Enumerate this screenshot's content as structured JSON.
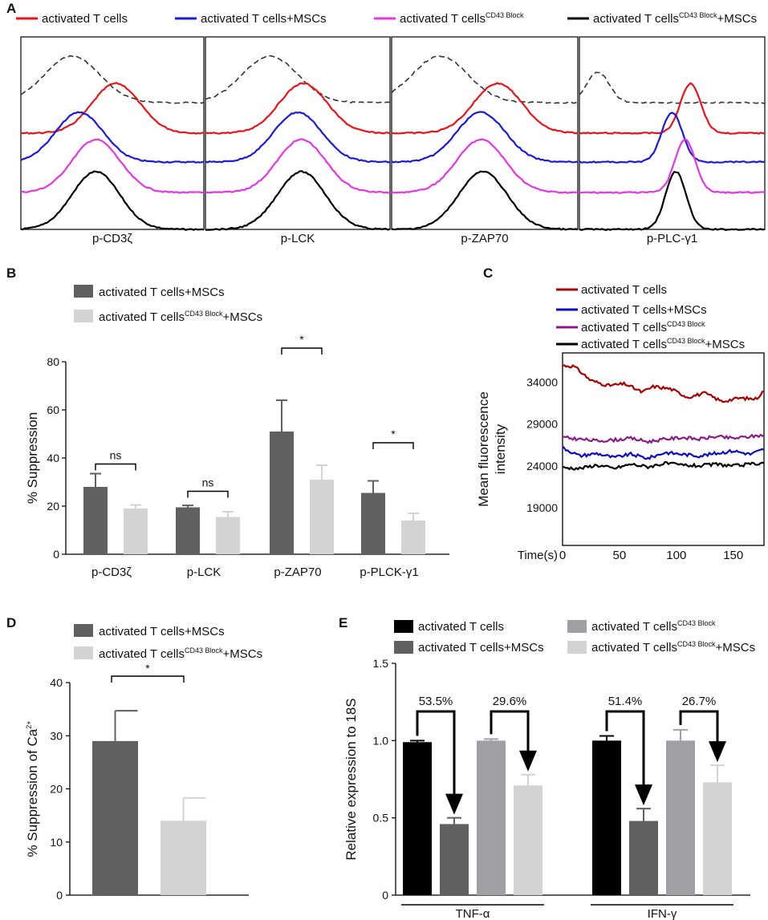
{
  "chart_data": [
    {
      "panel": "A",
      "type": "line",
      "description": "flow cytometry histograms",
      "legend": [
        {
          "label": "activated T cells",
          "color": "#e8141b"
        },
        {
          "label": "activated T cells+MSCs",
          "color": "#1a1adb"
        },
        {
          "label": "activated T cells",
          "label_sup": "CD43 Block",
          "color": "#e635e6"
        },
        {
          "label": "activated T cells",
          "label_sup": "CD43 Block",
          "label_suffix": "+MSCs",
          "color": "#000000"
        }
      ],
      "histograms": [
        {
          "label": "p-CD3ζ",
          "peak_positions": {
            "isotype": 0.28,
            "red": 0.52,
            "blue": 0.32,
            "magenta": 0.41,
            "black": 0.41
          }
        },
        {
          "label": "p-LCK",
          "peak_positions": {
            "isotype": 0.35,
            "red": 0.53,
            "blue": 0.5,
            "magenta": 0.52,
            "black": 0.52
          }
        },
        {
          "label": "p-ZAP70",
          "peak_positions": {
            "isotype": 0.26,
            "red": 0.57,
            "blue": 0.48,
            "magenta": 0.48,
            "black": 0.49
          }
        },
        {
          "label": "p-PLC-γ1",
          "peak_positions": {
            "isotype": 0.1,
            "red": 0.6,
            "blue": 0.5,
            "magenta": 0.57,
            "black": 0.52
          }
        }
      ]
    },
    {
      "panel": "B",
      "type": "bar",
      "ylabel": "% Suppression",
      "ylim": [
        0,
        80
      ],
      "yticks": [
        0,
        20,
        40,
        60,
        80
      ],
      "categories": [
        "p-CD3ζ",
        "p-LCK",
        "p-ZAP70",
        "p-PLCK-γ1"
      ],
      "series": [
        {
          "name": "activated T cells+MSCs",
          "color": "#606060",
          "values": [
            28,
            19.5,
            51,
            25.5
          ],
          "errors": [
            5.5,
            0.8,
            13,
            5
          ]
        },
        {
          "name": "activated T cells",
          "name_sup": "CD43 Block",
          "name_suffix": "+MSCs",
          "color": "#d3d3d3",
          "values": [
            19,
            15.5,
            31,
            14
          ],
          "errors": [
            1.5,
            2.2,
            6,
            3
          ]
        }
      ],
      "significance": [
        "ns",
        "ns",
        "*",
        "*"
      ]
    },
    {
      "panel": "C",
      "type": "line",
      "ylabel_lines": [
        "Mean fluorescence",
        "intensity"
      ],
      "xlabel": "Time(s)",
      "xlim": [
        0,
        177
      ],
      "ylim": [
        14500,
        37500
      ],
      "yticks": [
        19000,
        24000,
        29000,
        34000
      ],
      "xticks": [
        0,
        50,
        100,
        150
      ],
      "legend": [
        {
          "label": "activated T cells",
          "color": "#a80000"
        },
        {
          "label": "activated T cells+MSCs",
          "color": "#0d0dc0"
        },
        {
          "label": "activated T cells",
          "label_sup": "CD43 Block",
          "color": "#8b1a8b"
        },
        {
          "label": "activated T cells",
          "label_sup": "CD43 Block",
          "label_suffix": "+MSCs",
          "color": "#000000"
        }
      ],
      "series": [
        {
          "name": "activated T cells",
          "x": [
            0,
            10,
            25,
            40,
            55,
            70,
            80,
            95,
            110,
            125,
            140,
            155,
            170,
            177
          ],
          "y": [
            36000,
            35900,
            34200,
            33600,
            33800,
            32800,
            33500,
            33200,
            32200,
            32700,
            31700,
            32100,
            32000,
            33000
          ]
        },
        {
          "name": "activated T cells+MSCs",
          "x": [
            0,
            15,
            30,
            45,
            60,
            75,
            90,
            105,
            120,
            135,
            150,
            165,
            177
          ],
          "y": [
            26200,
            25200,
            25500,
            25000,
            25400,
            24900,
            25600,
            25400,
            25200,
            25500,
            25800,
            25400,
            26000
          ]
        },
        {
          "name": "activated T cells CD43 Block",
          "x": [
            0,
            15,
            30,
            45,
            60,
            75,
            90,
            105,
            120,
            135,
            150,
            165,
            177
          ],
          "y": [
            27400,
            27200,
            27000,
            27100,
            27300,
            26900,
            27200,
            27400,
            27200,
            27500,
            27300,
            27500,
            27700
          ]
        },
        {
          "name": "activated T cells CD43 Block+MSCs",
          "x": [
            0,
            15,
            30,
            45,
            60,
            75,
            90,
            105,
            120,
            135,
            150,
            165,
            177
          ],
          "y": [
            23800,
            23700,
            24100,
            23700,
            24200,
            23900,
            24300,
            24100,
            24000,
            24200,
            24000,
            24200,
            24400
          ]
        }
      ]
    },
    {
      "panel": "D",
      "type": "bar",
      "ylabel": "% Suppression of Ca",
      "ylabel_sup": "2+",
      "ylim": [
        0,
        40
      ],
      "yticks": [
        0,
        10,
        20,
        30,
        40
      ],
      "series": [
        {
          "name": "activated T cells+MSCs",
          "color": "#606060",
          "value": 29,
          "error": 5.7
        },
        {
          "name": "activated T cells",
          "name_sup": "CD43 Block",
          "name_suffix": "+MSCs",
          "color": "#d3d3d3",
          "value": 14,
          "error": 4.3
        }
      ],
      "significance": "*"
    },
    {
      "panel": "E",
      "type": "bar",
      "ylabel": "Relative expression to 18S",
      "ylim": [
        0,
        1.5
      ],
      "yticks": [
        "0",
        "0.5",
        "1.0",
        "1.5"
      ],
      "categories": [
        "TNF-α",
        "IFN-γ"
      ],
      "series": [
        {
          "name": "activated T cells",
          "color": "#000000",
          "values": [
            0.99,
            1.0
          ],
          "errors": [
            0.01,
            0.03
          ]
        },
        {
          "name": "activated T cells+MSCs",
          "color": "#606060",
          "values": [
            0.46,
            0.48
          ],
          "errors": [
            0.04,
            0.08
          ]
        },
        {
          "name": "activated T cells",
          "name_sup": "CD43 Block",
          "color": "#a0a0a4",
          "values": [
            1.0,
            1.0
          ],
          "errors": [
            0.01,
            0.07
          ]
        },
        {
          "name": "activated T cells",
          "name_sup": "CD43 Block",
          "name_suffix": "+MSCs",
          "color": "#d3d3d3",
          "values": [
            0.71,
            0.73
          ],
          "errors": [
            0.07,
            0.11
          ]
        }
      ],
      "annotations": [
        "53.5%",
        "29.6%",
        "51.4%",
        "26.7%"
      ]
    }
  ]
}
